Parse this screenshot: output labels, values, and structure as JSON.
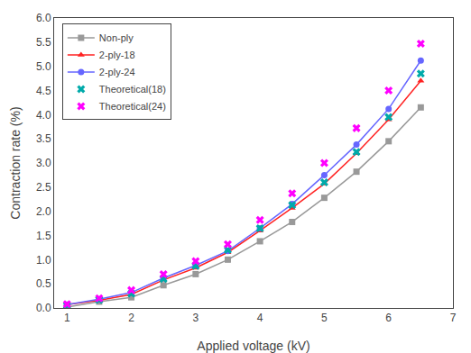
{
  "chart_data": {
    "type": "line",
    "xlabel": "Applied voltage (kV)",
    "ylabel": "Contraction rate (%)",
    "series": [
      {
        "name": "Non-ply",
        "color": "#999999",
        "marker": "square",
        "line_style": "solid",
        "x": [
          1.0,
          1.5,
          2.0,
          2.5,
          3.0,
          3.5,
          4.0,
          4.5,
          5.0,
          5.5,
          6.0,
          6.5
        ],
        "values": [
          0.02,
          0.13,
          0.22,
          0.47,
          0.7,
          1.0,
          1.38,
          1.78,
          2.28,
          2.82,
          3.45,
          4.15
        ]
      },
      {
        "name": "2-ply-18",
        "color": "#ff2222",
        "marker": "triangle",
        "line_style": "solid",
        "x": [
          1.0,
          1.5,
          2.0,
          2.5,
          3.0,
          3.5,
          4.0,
          4.5,
          5.0,
          5.5,
          6.0,
          6.5
        ],
        "values": [
          0.07,
          0.16,
          0.28,
          0.58,
          0.83,
          1.15,
          1.6,
          2.07,
          2.57,
          3.2,
          3.9,
          4.7
        ]
      },
      {
        "name": "2-ply-24",
        "color": "#6666ff",
        "marker": "circle",
        "line_style": "solid",
        "x": [
          1.0,
          1.5,
          2.0,
          2.5,
          3.0,
          3.5,
          4.0,
          4.5,
          5.0,
          5.5,
          6.0,
          6.5
        ],
        "values": [
          0.07,
          0.18,
          0.32,
          0.62,
          0.88,
          1.18,
          1.65,
          2.15,
          2.75,
          3.38,
          4.12,
          5.12
        ]
      },
      {
        "name": "Theoretical(18)",
        "color": "#00aaaa",
        "marker": "x",
        "line_style": "none",
        "x": [
          1.0,
          1.5,
          2.0,
          2.5,
          3.0,
          3.5,
          4.0,
          4.5,
          5.0,
          5.5,
          6.0,
          6.5
        ],
        "values": [
          0.05,
          0.17,
          0.3,
          0.6,
          0.87,
          1.2,
          1.65,
          2.13,
          2.6,
          3.23,
          3.95,
          4.85
        ]
      },
      {
        "name": "Theoretical(24)",
        "color": "#ff00ff",
        "marker": "x",
        "line_style": "none",
        "x": [
          1.0,
          1.5,
          2.0,
          2.5,
          3.0,
          3.5,
          4.0,
          4.5,
          5.0,
          5.5,
          6.0,
          6.5
        ],
        "values": [
          0.08,
          0.2,
          0.37,
          0.7,
          0.97,
          1.32,
          1.82,
          2.37,
          3.0,
          3.72,
          4.5,
          5.47
        ]
      }
    ],
    "xlim": [
      0.8,
      7.0
    ],
    "ylim": [
      0.0,
      6.0
    ],
    "xticks": [
      1,
      2,
      3,
      4,
      5,
      6,
      7
    ],
    "yticks": [
      {
        "value": 0,
        "label": "0.0"
      },
      0.5,
      {
        "value": 1,
        "label": "1.0"
      },
      1.5,
      {
        "value": 2,
        "label": "2.0"
      },
      2.5,
      {
        "value": 3,
        "label": "3.0"
      },
      3.5,
      {
        "value": 4,
        "label": "4.0"
      },
      4.5,
      {
        "value": 5,
        "label": "5.0"
      },
      5.5,
      {
        "value": 6,
        "label": "6.0"
      }
    ],
    "legend": "upper left",
    "grid": false
  }
}
